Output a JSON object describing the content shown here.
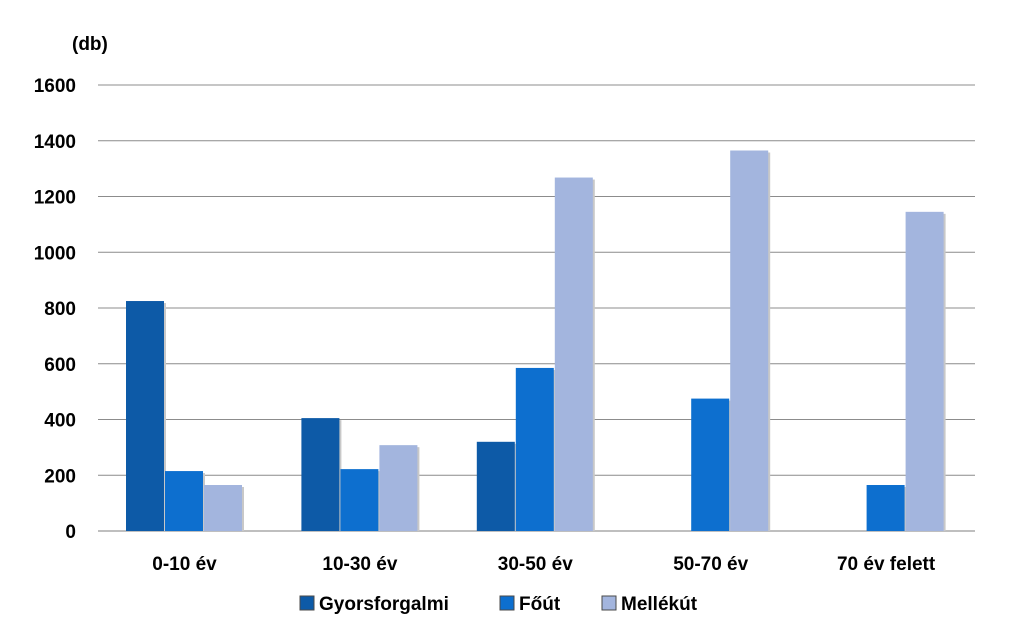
{
  "chart_data": {
    "type": "bar",
    "unit_label": "(db)",
    "categories": [
      "0-10 év",
      "10-30 év",
      "30-50 év",
      "50-70 év",
      "70 év felett"
    ],
    "series": [
      {
        "name": "Gyorsforgalmi",
        "color": "#0d5aa7",
        "values": [
          825,
          405,
          320,
          0,
          0
        ]
      },
      {
        "name": "Főút",
        "color": "#0d6fcf",
        "values": [
          215,
          222,
          585,
          475,
          165
        ]
      },
      {
        "name": "Mellékút",
        "color": "#a3b5de",
        "values": [
          165,
          308,
          1268,
          1365,
          1145
        ]
      }
    ],
    "ylim": [
      0,
      1600
    ],
    "yticks": [
      0,
      200,
      400,
      600,
      800,
      1000,
      1200,
      1400,
      1600
    ],
    "grid": true,
    "legend_position": "bottom"
  }
}
